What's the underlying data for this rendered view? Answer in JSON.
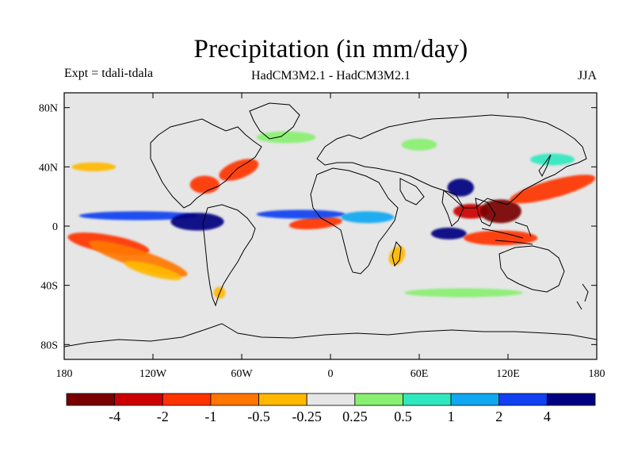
{
  "map": {
    "title": "Precipitation (in mm/day)",
    "left_label": "Expt = tdali-tdala",
    "center_label": "HadCM3M2.1 - HadCM3M2.1",
    "right_label": "JJA",
    "lat_ticks": [
      {
        "lat": 80,
        "label": "80N"
      },
      {
        "lat": 40,
        "label": "40N"
      },
      {
        "lat": 0,
        "label": "0"
      },
      {
        "lat": -40,
        "label": "40S"
      },
      {
        "lat": -80,
        "label": "80S"
      }
    ],
    "lon_ticks": [
      {
        "lon": -180,
        "label": "180"
      },
      {
        "lon": -120,
        "label": "120W"
      },
      {
        "lon": -60,
        "label": "60W"
      },
      {
        "lon": 0,
        "label": "0"
      },
      {
        "lon": 60,
        "label": "60E"
      },
      {
        "lon": 120,
        "label": "120E"
      },
      {
        "lon": 180,
        "label": "180"
      }
    ],
    "extent": {
      "lon_min": -180,
      "lon_max": 180,
      "lat_min": -90,
      "lat_max": 90
    },
    "colorbar": {
      "colors": [
        "#7a0000",
        "#cc0000",
        "#ff3300",
        "#ff7700",
        "#ffb800",
        "#e6e6e6",
        "#88f070",
        "#30e8c0",
        "#10a8f0",
        "#1040f0",
        "#000080"
      ],
      "labels": [
        "-4",
        "-2",
        "-1",
        "-0.5",
        "-0.25",
        "0.25",
        "0.5",
        "1",
        "2",
        "4"
      ]
    },
    "anomalies": [
      {
        "name": "pacific-itcz-dry",
        "lon": -150,
        "lat": -12,
        "rx": 28,
        "ry": 6,
        "rot": 10,
        "level": 2
      },
      {
        "name": "spcz-dry",
        "lon": -130,
        "lat": -22,
        "rx": 35,
        "ry": 6,
        "rot": 18,
        "level": 3
      },
      {
        "name": "east-pacific-wet",
        "lon": -130,
        "lat": 7,
        "rx": 40,
        "ry": 3,
        "rot": 0,
        "level": 9
      },
      {
        "name": "central-america-wet",
        "lon": -90,
        "lat": 3,
        "rx": 18,
        "ry": 6,
        "rot": 0,
        "level": 10
      },
      {
        "name": "gulf-dry",
        "lon": -85,
        "lat": 28,
        "rx": 10,
        "ry": 6,
        "rot": 0,
        "level": 2
      },
      {
        "name": "atlantic-dry-north",
        "lon": -62,
        "lat": 38,
        "rx": 14,
        "ry": 6,
        "rot": -20,
        "level": 2
      },
      {
        "name": "atlantic-itcz-dry",
        "lon": -10,
        "lat": 2,
        "rx": 18,
        "ry": 4,
        "rot": -5,
        "level": 2
      },
      {
        "name": "atlantic-itcz-wet",
        "lon": -20,
        "lat": 8,
        "rx": 30,
        "ry": 3,
        "rot": 0,
        "level": 9
      },
      {
        "name": "africa-wet",
        "lon": 25,
        "lat": 6,
        "rx": 18,
        "ry": 4,
        "rot": 0,
        "level": 8
      },
      {
        "name": "indian-ocean-wet-north",
        "lon": 88,
        "lat": 26,
        "rx": 9,
        "ry": 6,
        "rot": 0,
        "level": 10
      },
      {
        "name": "indian-ocean-wet-south",
        "lon": 80,
        "lat": -5,
        "rx": 12,
        "ry": 4,
        "rot": 0,
        "level": 10
      },
      {
        "name": "bay-bengal-dry",
        "lon": 95,
        "lat": 10,
        "rx": 12,
        "ry": 5,
        "rot": 0,
        "level": 1
      },
      {
        "name": "west-pacific-dry",
        "lon": 115,
        "lat": 10,
        "rx": 14,
        "ry": 8,
        "rot": 0,
        "level": 0
      },
      {
        "name": "maritime-dry",
        "lon": 115,
        "lat": -8,
        "rx": 25,
        "ry": 5,
        "rot": 0,
        "level": 2
      },
      {
        "name": "north-pacific-dry",
        "lon": 150,
        "lat": 25,
        "rx": 30,
        "ry": 6,
        "rot": -15,
        "level": 2
      },
      {
        "name": "mozambique-dry",
        "lon": 45,
        "lat": -20,
        "rx": 5,
        "ry": 7,
        "rot": 30,
        "level": 4
      },
      {
        "name": "southern-ocean-green",
        "lon": 90,
        "lat": -45,
        "rx": 40,
        "ry": 3,
        "rot": 0,
        "level": 6
      },
      {
        "name": "north-atlantic-green",
        "lon": -30,
        "lat": 60,
        "rx": 20,
        "ry": 4,
        "rot": 0,
        "level": 6
      },
      {
        "name": "siberia-green",
        "lon": 60,
        "lat": 55,
        "rx": 12,
        "ry": 4,
        "rot": 0,
        "level": 6
      },
      {
        "name": "kuroshio-wet",
        "lon": 150,
        "lat": 45,
        "rx": 15,
        "ry": 4,
        "rot": 0,
        "level": 7
      },
      {
        "name": "south-america-dry",
        "lon": -75,
        "lat": -45,
        "rx": 4,
        "ry": 4,
        "rot": 0,
        "level": 4
      },
      {
        "name": "east-pacific-south-dry",
        "lon": -120,
        "lat": -30,
        "rx": 20,
        "ry": 4,
        "rot": 15,
        "level": 4
      },
      {
        "name": "n-pacific-orange",
        "lon": -160,
        "lat": 40,
        "rx": 15,
        "ry": 3,
        "rot": 0,
        "level": 4
      }
    ]
  }
}
